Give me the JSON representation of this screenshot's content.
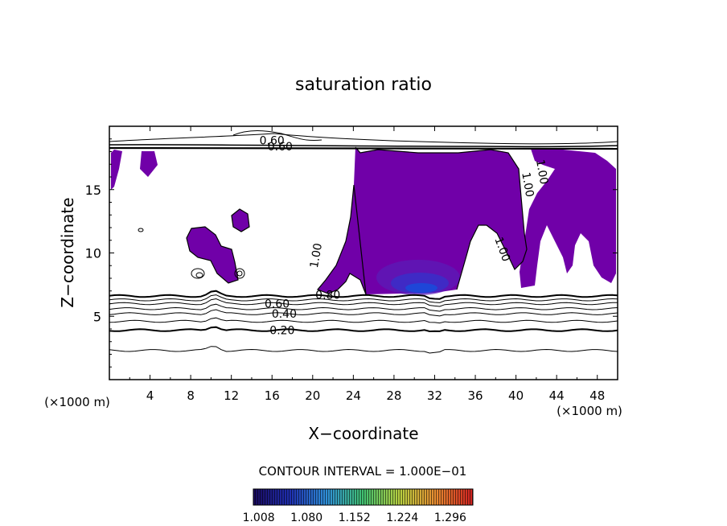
{
  "chart_data": {
    "type": "heatmap",
    "title": "saturation ratio",
    "xlabel": "X−coordinate",
    "ylabel": "Z−coordinate",
    "x_unit_left": "(×1000 m)",
    "x_unit_right": "(×1000 m)",
    "xlim": [
      0,
      50
    ],
    "ylim": [
      0,
      20
    ],
    "x_ticks": [
      4,
      8,
      12,
      16,
      20,
      24,
      28,
      32,
      36,
      40,
      44,
      48
    ],
    "y_ticks": [
      5,
      10,
      15
    ],
    "contour_interval_text": "CONTOUR INTERVAL = 1.000E−01",
    "contour_labels": [
      {
        "text": "0.20",
        "x": 17.0,
        "z": 3.9
      },
      {
        "text": "0.40",
        "x": 17.2,
        "z": 5.2
      },
      {
        "text": "0.60",
        "x": 16.5,
        "z": 6.0
      },
      {
        "text": "0.80",
        "x": 21.5,
        "z": 6.7
      },
      {
        "text": "1.00",
        "x": 20.3,
        "z": 9.8
      },
      {
        "text": "1.00",
        "x": 38.7,
        "z": 10.3
      },
      {
        "text": "1.00",
        "x": 41.2,
        "z": 15.4
      },
      {
        "text": "1.00",
        "x": 42.6,
        "z": 16.4
      },
      {
        "text": "0.60",
        "x": 16.0,
        "z": 18.9
      },
      {
        "text": "0.60",
        "x": 16.8,
        "z": 18.4
      }
    ],
    "colorbar": {
      "ticks": [
        "1.008",
        "1.080",
        "1.152",
        "1.224",
        "1.296"
      ],
      "range": [
        1.0,
        1.33
      ],
      "colors": [
        "#1a0a5e",
        "#1f2fb0",
        "#2f8fd8",
        "#40c070",
        "#b8d040",
        "#e88a30",
        "#d02020"
      ]
    },
    "supersaturated_color": "#7000a8"
  }
}
